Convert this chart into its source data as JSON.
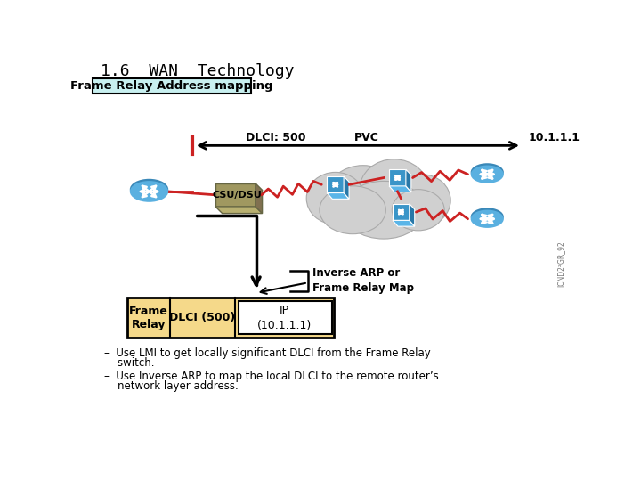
{
  "title": "1.6  WAN  Technology",
  "subtitle": "Frame Relay Address mapping",
  "bg_color": "#ffffff",
  "title_color": "#000000",
  "subtitle_bg": "#c8f0f0",
  "subtitle_border": "#000000",
  "bullet1_line1": "–  Use LMI to get locally significant DLCI from the Frame Relay",
  "bullet1_line2": "    switch.",
  "bullet2_line1": "–  Use Inverse ARP to map the local DLCI to the remote router’s",
  "bullet2_line2": "    network layer address.",
  "dlci_label": "DLCI: 500",
  "pvc_label": "PVC",
  "ip_label": "10.1.1.1",
  "csu_label": "CSU/DSU",
  "arp_label1": "Inverse ARP or",
  "arp_label2": "Frame Relay Map",
  "table_bg": "#f5d98a",
  "table_border": "#000000",
  "fr_label": "Frame\nRelay",
  "dlci500_label": "DLCI (500)",
  "ip_table_label1": "IP",
  "ip_table_label2": "(10.1.1.1)",
  "router_color_top": "#4da6d9",
  "router_color_bottom": "#2980b9",
  "switch_color_top": "#4da6d9",
  "switch_color_front": "#3a8fc0",
  "cloud_color": "#d0d0d0",
  "cloud_edge": "#aaaaaa",
  "csu_color_top": "#b8b070",
  "csu_color_front": "#a09860",
  "arrow_color": "#000000",
  "red_line_color": "#cc2222",
  "watermark": "ICND2²GR_92"
}
